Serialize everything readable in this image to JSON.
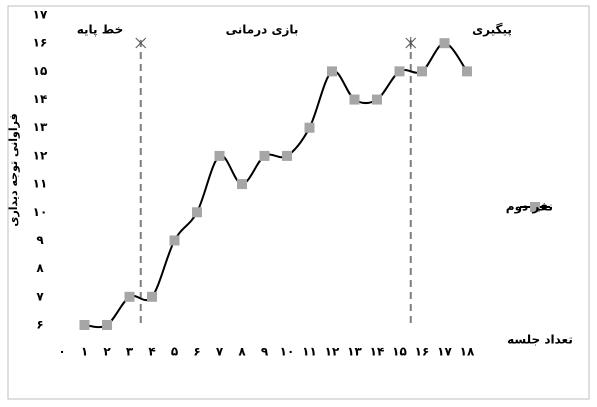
{
  "chart_data": {
    "type": "line",
    "y_label": "فراوانی توجه دیداری",
    "x_label": "تعداد جلسه",
    "phase_labels": [
      "خط پایه",
      "بازی درمانی",
      "پیگیری"
    ],
    "phase_changes": [
      3.5,
      15.5
    ],
    "x": [
      1,
      2,
      3,
      4,
      5,
      6,
      7,
      8,
      9,
      10,
      11,
      12,
      13,
      14,
      15,
      16,
      17,
      18
    ],
    "series": [
      {
        "name": "نفر دوم",
        "color": "#a6a6a6",
        "line_color": "#000000",
        "values": [
          6,
          6,
          7,
          7,
          9,
          10,
          12,
          11,
          12,
          12,
          13,
          15,
          14,
          14,
          15,
          15,
          16,
          15
        ]
      }
    ],
    "xlim": [
      0,
      18
    ],
    "ylim": [
      6,
      17
    ],
    "xticks": [
      {
        "value": 0,
        "label": "۰"
      },
      {
        "value": 1,
        "label": "۱"
      },
      {
        "value": 2,
        "label": "۲"
      },
      {
        "value": 3,
        "label": "۳"
      },
      {
        "value": 4,
        "label": "۴"
      },
      {
        "value": 5,
        "label": "۵"
      },
      {
        "value": 6,
        "label": "۶"
      },
      {
        "value": 7,
        "label": "۷"
      },
      {
        "value": 8,
        "label": "۸"
      },
      {
        "value": 9,
        "label": "۹"
      },
      {
        "value": 10,
        "label": "۱۰"
      },
      {
        "value": 11,
        "label": "۱۱"
      },
      {
        "value": 12,
        "label": "۱۲"
      },
      {
        "value": 13,
        "label": "۱۳"
      },
      {
        "value": 14,
        "label": "۱۴"
      },
      {
        "value": 15,
        "label": "۱۵"
      },
      {
        "value": 16,
        "label": "۱۶"
      },
      {
        "value": 17,
        "label": "۱۷"
      },
      {
        "value": 18,
        "label": "۱۸"
      }
    ],
    "yticks": [
      {
        "value": 6,
        "label": "۶"
      },
      {
        "value": 7,
        "label": "۷"
      },
      {
        "value": 8,
        "label": "۸"
      },
      {
        "value": 9,
        "label": "۹"
      },
      {
        "value": 10,
        "label": "۱۰"
      },
      {
        "value": 11,
        "label": "۱۱"
      },
      {
        "value": 12,
        "label": "۱۲"
      },
      {
        "value": 13,
        "label": "۱۳"
      },
      {
        "value": 14,
        "label": "۱۴"
      },
      {
        "value": 15,
        "label": "۱۵"
      },
      {
        "value": 16,
        "label": "۱۶"
      },
      {
        "value": 17,
        "label": "۱۷"
      }
    ],
    "grid": false,
    "legend": "right"
  }
}
